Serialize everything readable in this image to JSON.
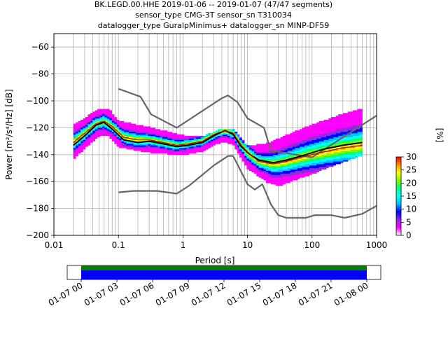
{
  "title_lines": [
    "BK.LEGD.00.HHE   2019-01-06 -- 2019-01-07  (47/47 segments)",
    "sensor_type CMG-3T sensor_sn T310034",
    "datalogger_type GuralpMinimus+ datalogger_sn MINP-DF59"
  ],
  "colorbar": {
    "label": "[%]",
    "ticks": [
      "0",
      "5",
      "10",
      "15",
      "20",
      "25",
      "30"
    ],
    "colormap": [
      "#ffffff",
      "#ff00ff",
      "#8a2be2",
      "#0000ff",
      "#00bfff",
      "#00ffff",
      "#00ff7f",
      "#7cfc00",
      "#ffff00",
      "#ff8c00",
      "#ff0000"
    ]
  },
  "chart_data": [
    {
      "type": "heatmap",
      "title": "",
      "xlabel": "Period [s]",
      "ylabel": "Power [m²/s⁴/Hz] [dB]",
      "x_scale": "log",
      "xlim": [
        0.01,
        1000
      ],
      "ylim": [
        -200,
        -50
      ],
      "x_tick_labels": [
        "0.01",
        "0.1",
        "1",
        "10",
        "100",
        "1000"
      ],
      "y_tick_labels": [
        "−200",
        "−180",
        "−160",
        "−140",
        "−120",
        "−100",
        "−80",
        "−60"
      ],
      "grid": true,
      "noise_models": {
        "new_high_noise_model": [
          [
            0.1,
            -91
          ],
          [
            0.22,
            -97
          ],
          [
            0.32,
            -110
          ],
          [
            0.8,
            -120
          ],
          [
            4.0,
            -98
          ],
          [
            5.0,
            -96
          ],
          [
            7.0,
            -101
          ],
          [
            10.0,
            -113
          ],
          [
            18.0,
            -120
          ],
          [
            23.0,
            -137
          ],
          [
            100.0,
            -142
          ],
          [
            1000.0,
            -111
          ]
        ],
        "new_low_noise_model": [
          [
            0.1,
            -168
          ],
          [
            0.17,
            -167
          ],
          [
            0.4,
            -167
          ],
          [
            0.8,
            -169
          ],
          [
            1.25,
            -163
          ],
          [
            3.0,
            -148
          ],
          [
            5.0,
            -141
          ],
          [
            6.0,
            -141
          ],
          [
            10.0,
            -162
          ],
          [
            13.0,
            -166
          ],
          [
            17.0,
            -162
          ],
          [
            23.0,
            -177
          ],
          [
            30.0,
            -185
          ],
          [
            40.0,
            -187
          ],
          [
            80.0,
            -187
          ],
          [
            110.0,
            -185
          ],
          [
            200.0,
            -185
          ],
          [
            320.0,
            -187
          ],
          [
            600.0,
            -184
          ],
          [
            1000.0,
            -178
          ]
        ]
      },
      "mean_psd": [
        [
          0.02,
          -133
        ],
        [
          0.03,
          -126
        ],
        [
          0.045,
          -118
        ],
        [
          0.06,
          -116
        ],
        [
          0.08,
          -121
        ],
        [
          0.12,
          -129
        ],
        [
          0.2,
          -131
        ],
        [
          0.3,
          -130
        ],
        [
          0.5,
          -132
        ],
        [
          0.8,
          -134
        ],
        [
          1.2,
          -133
        ],
        [
          2.0,
          -131
        ],
        [
          3.0,
          -126
        ],
        [
          4.5,
          -122
        ],
        [
          6.0,
          -125
        ],
        [
          8.0,
          -134
        ],
        [
          11.0,
          -140
        ],
        [
          15.0,
          -144
        ],
        [
          25.0,
          -146
        ],
        [
          40.0,
          -144
        ],
        [
          80.0,
          -140
        ],
        [
          150.0,
          -136
        ],
        [
          300.0,
          -133
        ],
        [
          600.0,
          -131
        ]
      ],
      "mode_psd": [
        [
          0.02,
          -131
        ],
        [
          0.03,
          -124
        ],
        [
          0.045,
          -117
        ],
        [
          0.06,
          -115
        ],
        [
          0.08,
          -119
        ],
        [
          0.12,
          -127
        ],
        [
          0.2,
          -129
        ],
        [
          0.3,
          -129
        ],
        [
          0.5,
          -131
        ],
        [
          0.8,
          -133
        ],
        [
          1.2,
          -132
        ],
        [
          2.0,
          -130
        ],
        [
          3.0,
          -125
        ],
        [
          4.5,
          -122
        ],
        [
          6.0,
          -124
        ],
        [
          8.0,
          -133
        ],
        [
          11.0,
          -140
        ],
        [
          15.0,
          -145
        ],
        [
          25.0,
          -147
        ],
        [
          40.0,
          -145
        ],
        [
          80.0,
          -141
        ],
        [
          150.0,
          -138
        ],
        [
          300.0,
          -135
        ],
        [
          600.0,
          -133
        ]
      ],
      "psd_spread_db": {
        "upper": [
          [
            0.02,
            -118
          ],
          [
            0.03,
            -113
          ],
          [
            0.05,
            -106
          ],
          [
            0.07,
            -106
          ],
          [
            0.1,
            -115
          ],
          [
            0.3,
            -120
          ],
          [
            1.0,
            -126
          ],
          [
            2.0,
            -127
          ],
          [
            4.0,
            -121
          ],
          [
            6.0,
            -121
          ],
          [
            10.0,
            -134
          ],
          [
            20.0,
            -132
          ],
          [
            40.0,
            -126
          ],
          [
            100.0,
            -118
          ],
          [
            300.0,
            -110
          ],
          [
            600.0,
            -106
          ]
        ],
        "lower": [
          [
            0.02,
            -143
          ],
          [
            0.03,
            -135
          ],
          [
            0.05,
            -126
          ],
          [
            0.07,
            -126
          ],
          [
            0.1,
            -134
          ],
          [
            0.3,
            -138
          ],
          [
            1.0,
            -140
          ],
          [
            2.0,
            -137
          ],
          [
            4.0,
            -130
          ],
          [
            6.0,
            -132
          ],
          [
            10.0,
            -150
          ],
          [
            20.0,
            -160
          ],
          [
            30.0,
            -163
          ],
          [
            100.0,
            -154
          ],
          [
            300.0,
            -145
          ],
          [
            600.0,
            -140
          ]
        ]
      }
    },
    {
      "type": "bar",
      "title": "",
      "x_tick_labels": [
        "01-07 00",
        "01-07 03",
        "01-07 06",
        "01-07 09",
        "01-07 12",
        "01-07 15",
        "01-07 18",
        "01-07 21",
        "01-08 00"
      ],
      "coverage": {
        "start_hours": 0,
        "end_hours": 24,
        "colors": [
          "#008000",
          "#0000ff"
        ]
      }
    }
  ]
}
